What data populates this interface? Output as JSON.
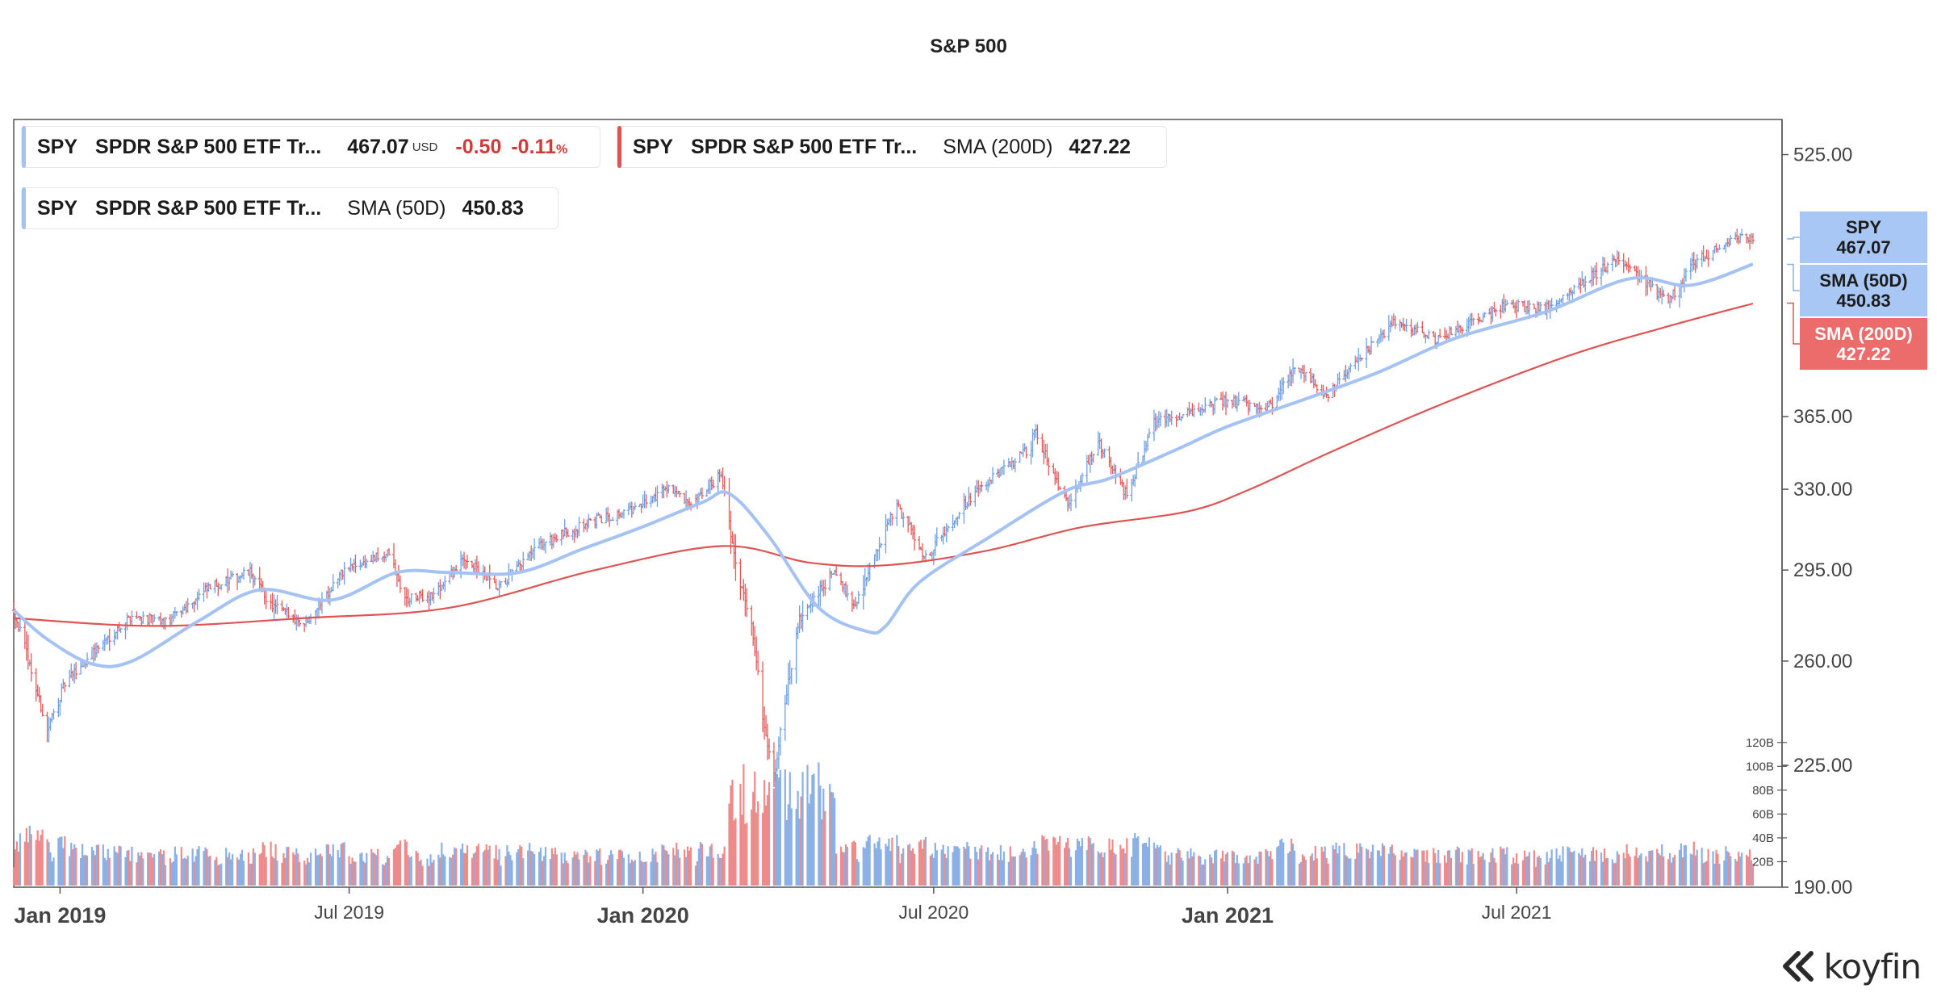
{
  "chart_title": "S&P 500",
  "legend": {
    "price": {
      "ticker": "SPY",
      "name": "SPDR S&P 500 ETF Tr...",
      "value": "467.07",
      "currency": "USD",
      "change": "-0.50",
      "change_pct": "-0.11",
      "pct_sign": "%",
      "color": "#a4c2f4"
    },
    "sma200": {
      "ticker": "SPY",
      "name": "SPDR S&P 500 ETF Tr...",
      "indicator": "SMA (200D)",
      "value": "427.22",
      "color": "#e05353"
    },
    "sma50": {
      "ticker": "SPY",
      "name": "SPDR S&P 500 ETF Tr...",
      "indicator": "SMA (50D)",
      "value": "450.83",
      "color": "#a4c2f4"
    }
  },
  "price_tags": {
    "spy": {
      "label": "SPY",
      "value": "467.07"
    },
    "sma50": {
      "label": "SMA (50D)",
      "value": "450.83"
    },
    "sma200": {
      "label": "SMA (200D)",
      "value": "427.22"
    }
  },
  "branding": {
    "logo_text": "koyfin"
  },
  "chart_data": {
    "type": "line",
    "title": "S&P 500",
    "x_axis_labels": [
      {
        "date": "2019-01-01",
        "label": "Jan 2019",
        "bold": true
      },
      {
        "date": "2019-07-01",
        "label": "Jul 2019",
        "bold": false
      },
      {
        "date": "2020-01-01",
        "label": "Jan 2020",
        "bold": true
      },
      {
        "date": "2020-07-01",
        "label": "Jul 2020",
        "bold": false
      },
      {
        "date": "2021-01-01",
        "label": "Jan 2021",
        "bold": true
      },
      {
        "date": "2021-07-01",
        "label": "Jul 2021",
        "bold": false
      }
    ],
    "x_range": [
      "2018-12-03",
      "2021-11-26"
    ],
    "y_price_ticks": [
      "525.00",
      "365.00",
      "330.00",
      "295.00",
      "260.00",
      "225.00",
      "190.00"
    ],
    "y_price_range": [
      190,
      550
    ],
    "y_price_scale": "log",
    "y_volume_ticks": [
      "120B",
      "100B",
      "80B",
      "60B",
      "40B",
      "20B"
    ],
    "volume_range_B": [
      0,
      130
    ],
    "colors": {
      "up": "#8ab0e6",
      "down": "#ef8a8a",
      "sma50": "#a4c2f4",
      "sma200": "#e05353"
    },
    "series": [
      {
        "name": "SPY",
        "type": "ohlc",
        "anchors": [
          [
            "2018-12-03",
            279
          ],
          [
            "2018-12-10",
            265
          ],
          [
            "2018-12-17",
            250
          ],
          [
            "2018-12-24",
            236
          ],
          [
            "2019-01-04",
            252
          ],
          [
            "2019-01-25",
            265
          ],
          [
            "2019-02-15",
            277
          ],
          [
            "2019-03-08",
            274
          ],
          [
            "2019-04-05",
            288
          ],
          [
            "2019-04-30",
            294
          ],
          [
            "2019-05-13",
            281
          ],
          [
            "2019-06-03",
            274
          ],
          [
            "2019-06-28",
            295
          ],
          [
            "2019-07-26",
            302
          ],
          [
            "2019-08-05",
            283
          ],
          [
            "2019-08-23",
            285
          ],
          [
            "2019-09-12",
            300
          ],
          [
            "2019-10-02",
            287
          ],
          [
            "2019-10-28",
            305
          ],
          [
            "2019-11-27",
            315
          ],
          [
            "2019-12-31",
            322
          ],
          [
            "2020-01-17",
            332
          ],
          [
            "2020-01-31",
            321
          ],
          [
            "2020-02-19",
            338
          ],
          [
            "2020-02-28",
            296
          ],
          [
            "2020-03-09",
            275
          ],
          [
            "2020-03-16",
            240
          ],
          [
            "2020-03-23",
            222
          ],
          [
            "2020-04-08",
            275
          ],
          [
            "2020-04-29",
            294
          ],
          [
            "2020-05-13",
            281
          ],
          [
            "2020-06-08",
            323
          ],
          [
            "2020-06-26",
            300
          ],
          [
            "2020-07-22",
            325
          ],
          [
            "2020-08-31",
            350
          ],
          [
            "2020-09-02",
            358
          ],
          [
            "2020-09-23",
            322
          ],
          [
            "2020-10-12",
            352
          ],
          [
            "2020-10-30",
            327
          ],
          [
            "2020-11-16",
            362
          ],
          [
            "2020-12-31",
            373
          ],
          [
            "2021-01-29",
            370
          ],
          [
            "2021-02-12",
            392
          ],
          [
            "2021-03-04",
            376
          ],
          [
            "2021-04-16",
            416
          ],
          [
            "2021-05-12",
            406
          ],
          [
            "2021-06-25",
            426
          ],
          [
            "2021-07-19",
            424
          ],
          [
            "2021-08-30",
            452
          ],
          [
            "2021-09-03",
            454
          ],
          [
            "2021-10-04",
            428
          ],
          [
            "2021-10-20",
            452
          ],
          [
            "2021-11-18",
            469
          ],
          [
            "2021-11-26",
            467
          ]
        ]
      },
      {
        "name": "SMA (50D)",
        "type": "line",
        "points": [
          [
            "2018-12-03",
            279
          ],
          [
            "2018-12-24",
            268
          ],
          [
            "2019-01-21",
            259
          ],
          [
            "2019-02-15",
            260
          ],
          [
            "2019-03-29",
            275
          ],
          [
            "2019-05-06",
            287
          ],
          [
            "2019-06-20",
            283
          ],
          [
            "2019-07-31",
            294
          ],
          [
            "2019-09-02",
            294
          ],
          [
            "2019-10-15",
            294
          ],
          [
            "2019-11-25",
            304
          ],
          [
            "2019-12-31",
            313
          ],
          [
            "2020-02-07",
            324
          ],
          [
            "2020-02-24",
            328
          ],
          [
            "2020-03-20",
            309
          ],
          [
            "2020-04-20",
            280
          ],
          [
            "2020-05-20",
            271
          ],
          [
            "2020-06-01",
            273
          ],
          [
            "2020-06-22",
            290
          ],
          [
            "2020-08-03",
            308
          ],
          [
            "2020-09-21",
            329
          ],
          [
            "2020-10-19",
            335
          ],
          [
            "2020-12-01",
            349
          ],
          [
            "2021-01-01",
            360
          ],
          [
            "2021-02-22",
            375
          ],
          [
            "2021-04-05",
            388
          ],
          [
            "2021-05-24",
            407
          ],
          [
            "2021-07-19",
            422
          ],
          [
            "2021-09-10",
            442
          ],
          [
            "2021-10-18",
            438
          ],
          [
            "2021-11-26",
            451
          ]
        ]
      },
      {
        "name": "SMA (200D)",
        "type": "line",
        "points": [
          [
            "2018-12-03",
            276
          ],
          [
            "2019-03-01",
            273
          ],
          [
            "2019-06-03",
            276
          ],
          [
            "2019-09-02",
            280
          ],
          [
            "2019-12-02",
            295
          ],
          [
            "2020-02-20",
            305
          ],
          [
            "2020-04-15",
            298
          ],
          [
            "2020-06-01",
            297
          ],
          [
            "2020-08-03",
            303
          ],
          [
            "2020-10-01",
            313
          ],
          [
            "2020-12-07",
            320
          ],
          [
            "2021-01-15",
            330
          ],
          [
            "2021-03-08",
            348
          ],
          [
            "2021-05-17",
            372
          ],
          [
            "2021-08-02",
            397
          ],
          [
            "2021-10-01",
            413
          ],
          [
            "2021-11-26",
            427
          ]
        ]
      }
    ]
  }
}
